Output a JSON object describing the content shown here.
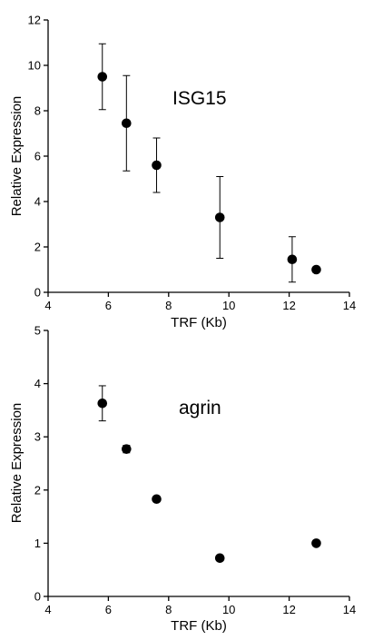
{
  "chart_data": [
    {
      "type": "scatter",
      "title": "",
      "annotation": "ISG15",
      "xlabel": "TRF (Kb)",
      "ylabel": "Relative Expression",
      "xlim": [
        4,
        14
      ],
      "ylim": [
        0,
        12
      ],
      "xticks": [
        "4",
        "6",
        "8",
        "10",
        "12",
        "14"
      ],
      "yticks": [
        "0",
        "2",
        "4",
        "6",
        "8",
        "10",
        "12"
      ],
      "points": [
        {
          "x": 5.8,
          "y": 9.5,
          "err": 1.45
        },
        {
          "x": 6.6,
          "y": 7.45,
          "err": 2.1
        },
        {
          "x": 7.6,
          "y": 5.6,
          "err": 1.2
        },
        {
          "x": 9.7,
          "y": 3.3,
          "err": 1.8
        },
        {
          "x": 12.1,
          "y": 1.45,
          "err": 1.0
        },
        {
          "x": 12.9,
          "y": 1.0,
          "err": 0
        }
      ]
    },
    {
      "type": "scatter",
      "title": "",
      "annotation": "agrin",
      "xlabel": "TRF (Kb)",
      "ylabel": "Relative Expression",
      "xlim": [
        4,
        14
      ],
      "ylim": [
        0,
        5
      ],
      "xticks": [
        "4",
        "6",
        "8",
        "10",
        "12",
        "14"
      ],
      "yticks": [
        "0",
        "1",
        "2",
        "3",
        "4",
        "5"
      ],
      "points": [
        {
          "x": 5.8,
          "y": 3.63,
          "err": 0.33
        },
        {
          "x": 6.6,
          "y": 2.77,
          "err": 0.07
        },
        {
          "x": 7.6,
          "y": 1.83,
          "err": 0.04
        },
        {
          "x": 9.7,
          "y": 0.72,
          "err": 0
        },
        {
          "x": 12.9,
          "y": 1.0,
          "err": 0
        }
      ]
    }
  ]
}
